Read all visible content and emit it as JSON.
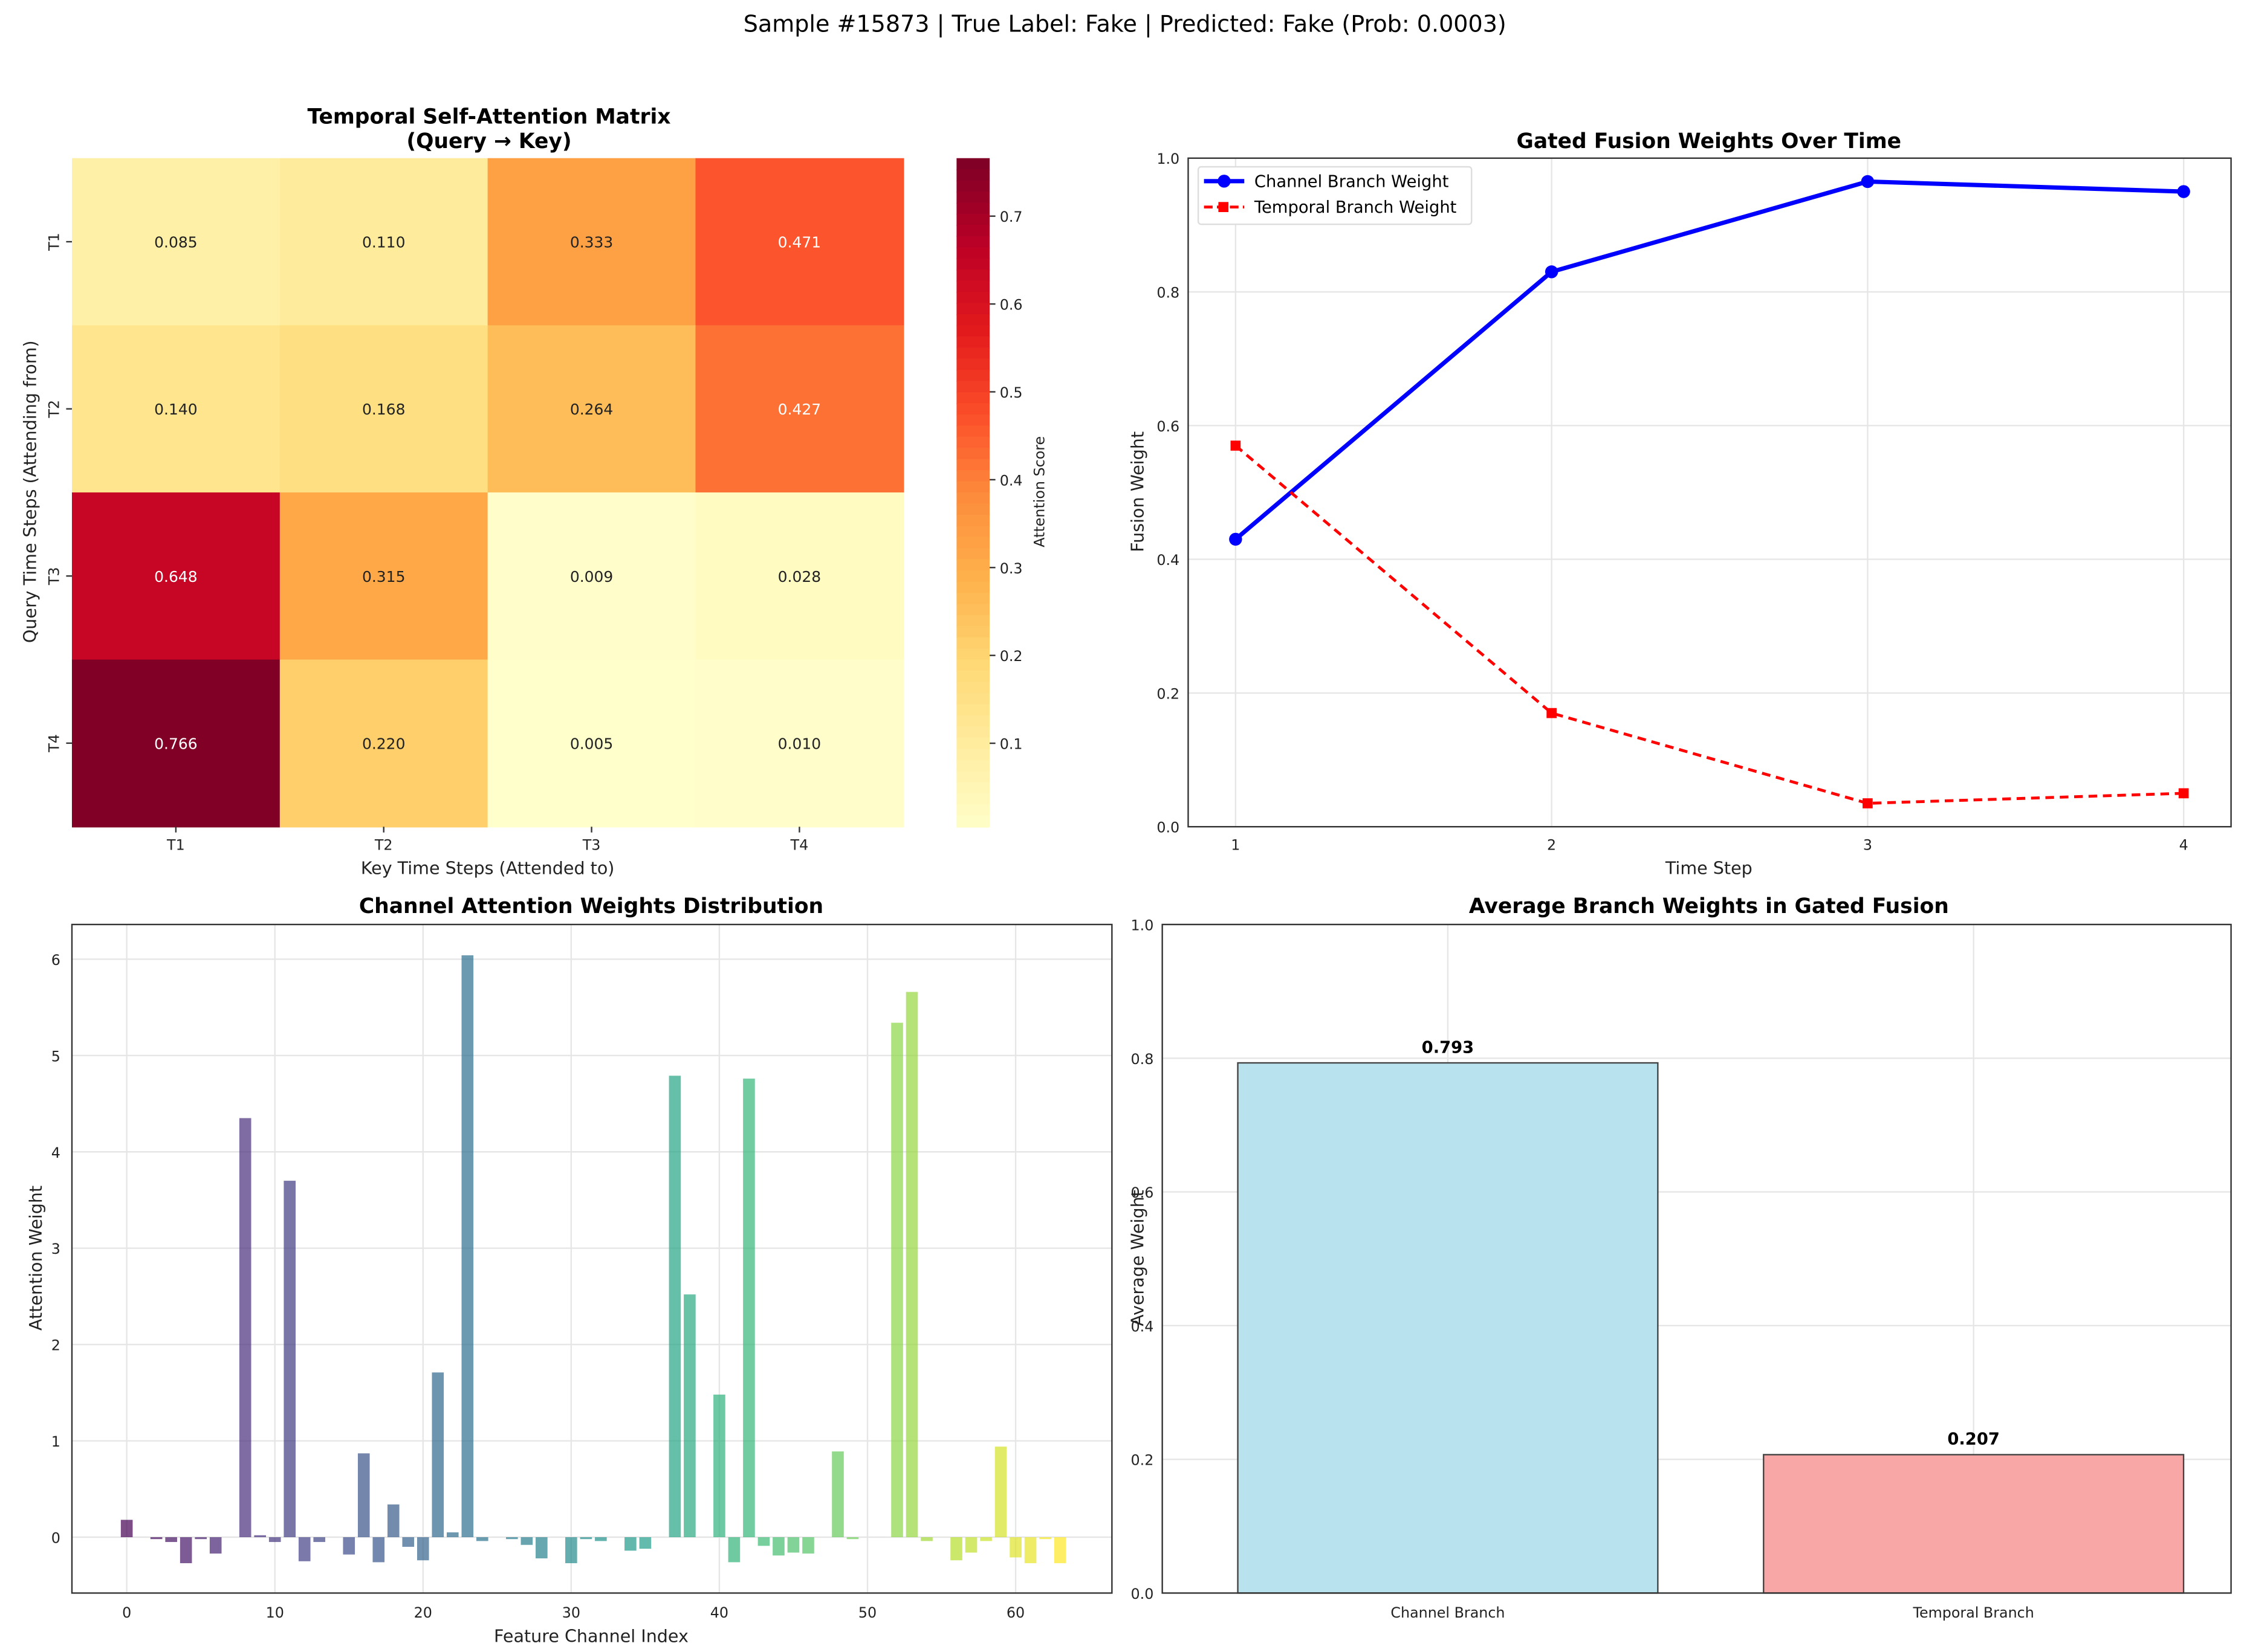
{
  "suptitle": "Sample #15873 | True Label: Fake | Predicted: Fake (Prob: 0.0003)",
  "chart_data": [
    {
      "type": "heatmap",
      "title": "Temporal Self-Attention Matrix",
      "subtitle": "(Query → Key)",
      "xlabel": "Key Time Steps (Attended to)",
      "ylabel": "Query Time Steps (Attending from)",
      "x_categories": [
        "T1",
        "T2",
        "T3",
        "T4"
      ],
      "y_categories": [
        "T1",
        "T2",
        "T3",
        "T4"
      ],
      "values": [
        [
          0.085,
          0.11,
          0.333,
          0.471
        ],
        [
          0.14,
          0.168,
          0.264,
          0.427
        ],
        [
          0.648,
          0.315,
          0.009,
          0.028
        ],
        [
          0.766,
          0.22,
          0.005,
          0.01
        ]
      ],
      "labels": [
        [
          "0.085",
          "0.110",
          "0.333",
          "0.471"
        ],
        [
          "0.140",
          "0.168",
          "0.264",
          "0.427"
        ],
        [
          "0.648",
          "0.315",
          "0.009",
          "0.028"
        ],
        [
          "0.766",
          "0.220",
          "0.005",
          "0.010"
        ]
      ],
      "colorbar": {
        "label": "Attention Score",
        "colormap": "YlOrRd",
        "range": [
          0.005,
          0.766
        ],
        "ticks": [
          "0.1",
          "0.2",
          "0.3",
          "0.4",
          "0.5",
          "0.6",
          "0.7"
        ]
      }
    },
    {
      "type": "line",
      "title": "Gated Fusion Weights Over Time",
      "xlabel": "Time Step",
      "ylabel": "Fusion Weight",
      "x": [
        1,
        2,
        3,
        4
      ],
      "x_ticks": [
        "1",
        "2",
        "3",
        "4"
      ],
      "y_ticks": [
        "0.0",
        "0.2",
        "0.4",
        "0.6",
        "0.8",
        "1.0"
      ],
      "ylim": [
        0,
        1
      ],
      "xlim": [
        0.85,
        4.15
      ],
      "grid": true,
      "legend_position": "top-left",
      "series": [
        {
          "name": "Channel Branch Weight",
          "values": [
            0.43,
            0.83,
            0.965,
            0.95
          ],
          "color": "#0000ff",
          "style": "solid",
          "marker": "circle"
        },
        {
          "name": "Temporal Branch Weight",
          "values": [
            0.57,
            0.17,
            0.035,
            0.05
          ],
          "color": "#ff0000",
          "style": "dashed",
          "marker": "square"
        }
      ]
    },
    {
      "type": "bar",
      "title": "Channel Attention Weights Distribution",
      "xlabel": "Feature Channel Index",
      "ylabel": "Attention Weight",
      "colormap": "viridis",
      "x_ticks": [
        "0",
        "10",
        "20",
        "30",
        "40",
        "50",
        "60"
      ],
      "y_ticks": [
        "0",
        "1",
        "2",
        "3",
        "4",
        "5",
        "6"
      ],
      "xlim": [
        -3.7,
        66.5
      ],
      "ylim": [
        -0.58,
        6.36
      ],
      "grid": true,
      "values": [
        0.18,
        0,
        -0.02,
        -0.05,
        -0.27,
        -0.02,
        -0.17,
        0,
        4.35,
        0.02,
        -0.05,
        3.7,
        -0.25,
        -0.05,
        0,
        -0.18,
        0.87,
        -0.26,
        0.34,
        -0.1,
        -0.24,
        1.71,
        0.05,
        6.04,
        -0.04,
        0,
        -0.02,
        -0.08,
        -0.22,
        0,
        -0.27,
        -0.02,
        -0.04,
        0,
        -0.14,
        -0.12,
        0,
        4.79,
        2.52,
        0,
        1.48,
        -0.26,
        4.76,
        -0.09,
        -0.19,
        -0.16,
        -0.17,
        0,
        0.89,
        -0.02,
        0,
        0,
        5.34,
        5.66,
        -0.04,
        0,
        -0.24,
        -0.16,
        -0.04,
        0.94,
        -0.21,
        -0.27,
        -0.02,
        -0.27
      ]
    },
    {
      "type": "bar",
      "title": "Average Branch Weights in Gated Fusion",
      "xlabel": "",
      "ylabel": "Average Weight",
      "categories": [
        "Channel Branch",
        "Temporal Branch"
      ],
      "values": [
        0.793,
        0.207
      ],
      "value_labels": [
        "0.793",
        "0.207"
      ],
      "colors": [
        "#b8e2ee",
        "#f9a6a6"
      ],
      "y_ticks": [
        "0.0",
        "0.2",
        "0.4",
        "0.6",
        "0.8",
        "1.0"
      ],
      "ylim": [
        0,
        1
      ],
      "grid": true
    }
  ]
}
